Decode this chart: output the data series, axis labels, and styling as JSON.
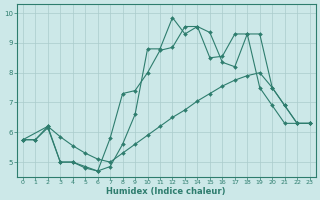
{
  "xlabel": "Humidex (Indice chaleur)",
  "bg_color": "#cce8e8",
  "line_color": "#2e7d6e",
  "grid_color": "#aacccc",
  "xlim": [
    -0.5,
    23.5
  ],
  "ylim": [
    4.5,
    10.3
  ],
  "xticks": [
    0,
    1,
    2,
    3,
    4,
    5,
    6,
    7,
    8,
    9,
    10,
    11,
    12,
    13,
    14,
    15,
    16,
    17,
    18,
    19,
    20,
    21,
    22,
    23
  ],
  "yticks": [
    5,
    6,
    7,
    8,
    9,
    10
  ],
  "line1_x": [
    0,
    1,
    2,
    3,
    4,
    5,
    6,
    7,
    8,
    9,
    10,
    11,
    12,
    13,
    14,
    15,
    16,
    17,
    18,
    19,
    20,
    21,
    22,
    23
  ],
  "line1_y": [
    5.75,
    5.75,
    6.2,
    5.0,
    5.0,
    4.8,
    4.7,
    4.85,
    5.6,
    6.6,
    8.8,
    8.8,
    9.85,
    9.3,
    9.55,
    9.35,
    8.35,
    8.2,
    9.3,
    9.3,
    7.5,
    6.9,
    6.3,
    6.3
  ],
  "line2_x": [
    0,
    1,
    2,
    3,
    4,
    5,
    6,
    7,
    8,
    9,
    10,
    11,
    12,
    13,
    14,
    15,
    16,
    17,
    18,
    19,
    20,
    21,
    22,
    23
  ],
  "line2_y": [
    5.75,
    5.75,
    6.15,
    5.0,
    5.0,
    4.85,
    4.7,
    5.8,
    7.3,
    7.4,
    8.0,
    8.75,
    8.85,
    9.55,
    9.55,
    8.5,
    8.55,
    9.3,
    9.3,
    7.5,
    6.9,
    6.3,
    6.3,
    6.3
  ],
  "line3_x": [
    0,
    2,
    3,
    4,
    5,
    6,
    7,
    8,
    9,
    10,
    11,
    12,
    13,
    14,
    15,
    16,
    17,
    18,
    19,
    20,
    21,
    22,
    23
  ],
  "line3_y": [
    5.75,
    6.2,
    5.85,
    5.55,
    5.3,
    5.1,
    5.0,
    5.3,
    5.6,
    5.9,
    6.2,
    6.5,
    6.75,
    7.05,
    7.3,
    7.55,
    7.75,
    7.9,
    8.0,
    7.5,
    6.9,
    6.3,
    6.3
  ]
}
